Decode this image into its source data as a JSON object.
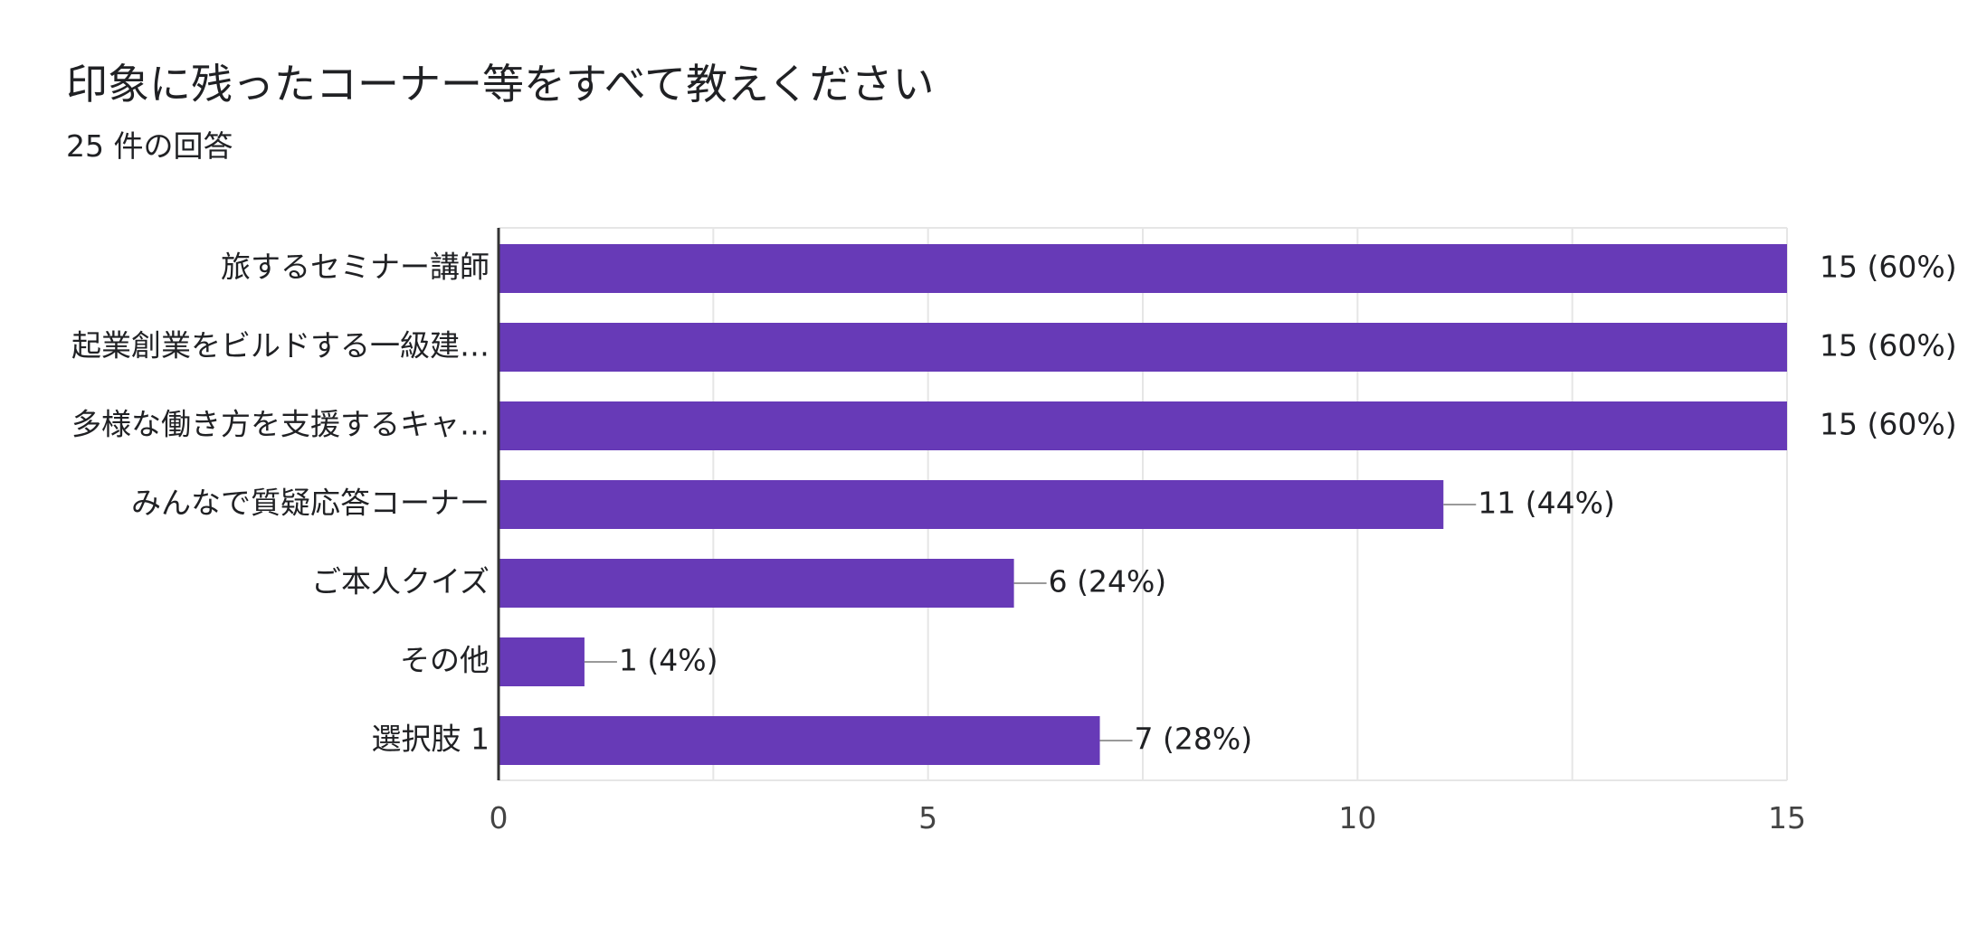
{
  "title": "印象に残ったコーナー等をすべて教えください",
  "subtitle": "25 件の回答",
  "chart_data": {
    "type": "bar",
    "orientation": "horizontal",
    "title": "印象に残ったコーナー等をすべて教えください",
    "categories": [
      "旅するセミナー講師",
      "起業創業をビルドする一級建…",
      "多様な働き方を支援するキャ…",
      "みんなで質疑応答コーナー",
      "ご本人クイズ",
      "その他",
      "選択肢 1"
    ],
    "values": [
      15,
      15,
      15,
      11,
      6,
      1,
      7
    ],
    "data_labels": [
      "15 (60%)",
      "15 (60%)",
      "15 (60%)",
      "11 (44%)",
      "6 (24%)",
      "1 (4%)",
      "7 (28%)"
    ],
    "xlim": [
      0,
      15
    ],
    "x_ticks": [
      0,
      5,
      10,
      15
    ],
    "x_tick_labels": [
      "0",
      "5",
      "10",
      "15"
    ],
    "grid": true,
    "bar_color": "#673ab7",
    "leader_line_color": "#999999",
    "gridline_color": "#e6e6e6",
    "axis_color": "#333333"
  }
}
